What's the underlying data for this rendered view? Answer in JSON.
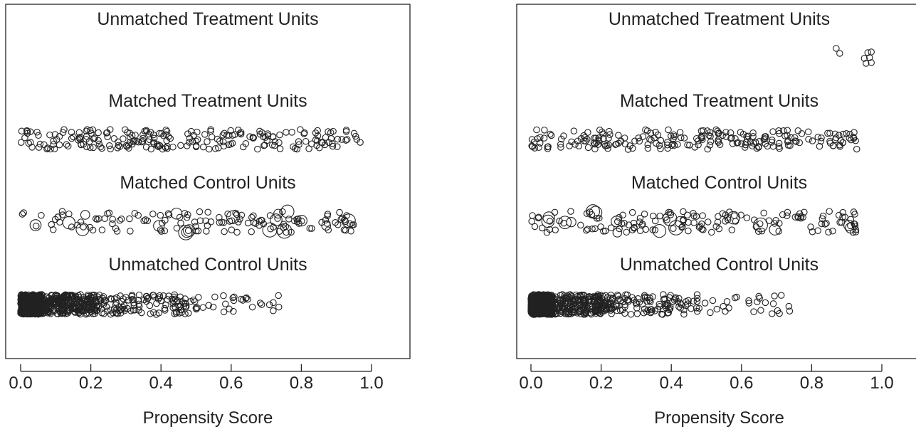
{
  "chart_data": [
    {
      "type": "scatter",
      "xlabel": "Propensity Score",
      "xlim": [
        0.0,
        1.0
      ],
      "xticks": [
        0.0,
        0.2,
        0.4,
        0.6,
        0.8,
        1.0
      ],
      "tick_labels": [
        "0.0",
        "0.2",
        "0.4",
        "0.6",
        "0.8",
        "1.0"
      ],
      "groups": [
        {
          "label": "Unmatched Treatment Units",
          "points": [],
          "marker_size": "small"
        },
        {
          "label": "Matched Treatment Units",
          "spread": [
            0.0,
            0.97
          ],
          "density": "uniform",
          "approx_count": 230
        },
        {
          "label": "Matched Control Units",
          "spread": [
            0.0,
            0.95
          ],
          "density": "uniform",
          "approx_count": 150,
          "marker_size": "varies (weighted)"
        },
        {
          "label": "Unmatched Control Units",
          "spread": [
            0.0,
            0.74
          ],
          "density": "concentrated near 0",
          "approx_count": 900
        }
      ]
    },
    {
      "type": "scatter",
      "xlabel": "Propensity Score",
      "xlim": [
        0.0,
        1.0
      ],
      "xticks": [
        0.0,
        0.2,
        0.4,
        0.6,
        0.8,
        1.0
      ],
      "tick_labels": [
        "0.0",
        "0.2",
        "0.4",
        "0.6",
        "0.8",
        "1.0"
      ],
      "groups": [
        {
          "label": "Unmatched Treatment Units",
          "points": [
            0.87,
            0.88,
            0.95,
            0.955,
            0.96,
            0.965,
            0.97,
            0.97
          ]
        },
        {
          "label": "Matched Treatment Units",
          "spread": [
            0.0,
            0.93
          ],
          "density": "uniform",
          "approx_count": 220
        },
        {
          "label": "Matched Control Units",
          "spread": [
            0.0,
            0.94
          ],
          "density": "uniform",
          "approx_count": 160,
          "marker_size": "varies (weighted)"
        },
        {
          "label": "Unmatched Control Units",
          "spread": [
            0.0,
            0.74
          ],
          "density": "concentrated near 0",
          "approx_count": 900
        }
      ]
    }
  ]
}
